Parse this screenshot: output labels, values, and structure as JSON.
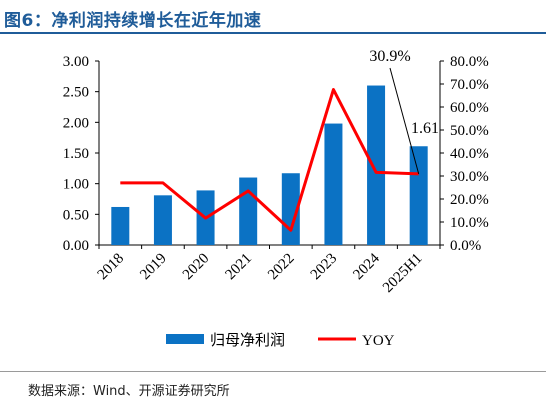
{
  "figure": {
    "title": "图6：净利润持续增长在近年加速",
    "source": "数据来源：Wind、开源证券研究所"
  },
  "chart_data": {
    "type": "bar",
    "categories": [
      "2018",
      "2019",
      "2020",
      "2021",
      "2022",
      "2023",
      "2024",
      "2025H1"
    ],
    "series": [
      {
        "name": "归母净利润",
        "type": "bar",
        "axis": "left",
        "color": "#0b72c4",
        "values": [
          0.62,
          0.81,
          0.89,
          1.1,
          1.17,
          1.98,
          2.6,
          1.61
        ]
      },
      {
        "name": "YOY",
        "type": "line",
        "axis": "right",
        "color": "#ff0000",
        "values": [
          27.0,
          27.0,
          11.7,
          23.5,
          6.4,
          67.6,
          31.6,
          30.9
        ]
      }
    ],
    "y_left": {
      "ylim": [
        0,
        3
      ],
      "ticks": [
        "0.00",
        "0.50",
        "1.00",
        "1.50",
        "2.00",
        "2.50",
        "3.00"
      ]
    },
    "y_right": {
      "ylim": [
        0,
        80
      ],
      "ticks": [
        "0.0%",
        "10.0%",
        "20.0%",
        "30.0%",
        "40.0%",
        "50.0%",
        "60.0%",
        "70.0%",
        "80.0%"
      ]
    },
    "annotations": [
      {
        "text": "30.9%",
        "points_to": "YOY 2025H1"
      },
      {
        "text": "1.61",
        "points_to": "归母净利润 2025H1"
      }
    ],
    "legend": {
      "position": "bottom"
    },
    "grid": false
  }
}
